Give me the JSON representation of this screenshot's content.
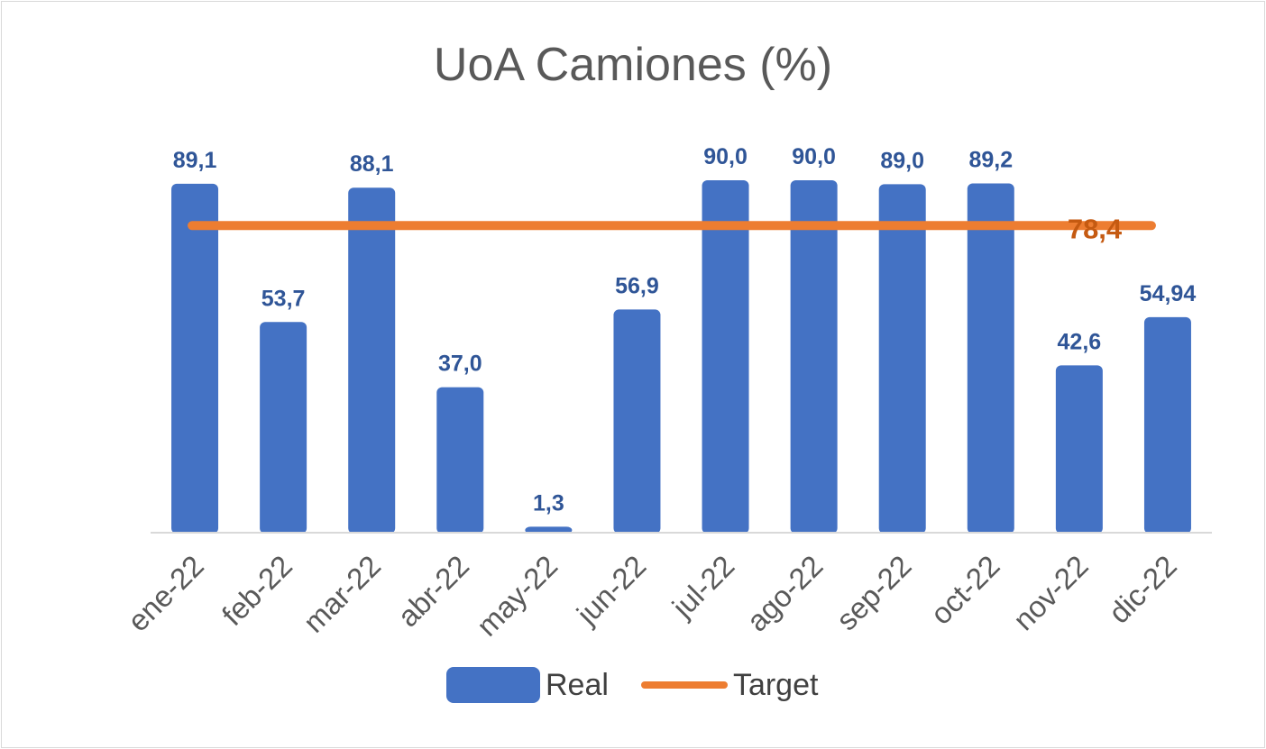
{
  "chart_data": {
    "type": "bar",
    "title": "UoA Camiones (%)",
    "categories": [
      "ene-22",
      "feb-22",
      "mar-22",
      "abr-22",
      "may-22",
      "jun-22",
      "jul-22",
      "ago-22",
      "sep-22",
      "oct-22",
      "nov-22",
      "dic-22"
    ],
    "series": [
      {
        "name": "Real",
        "type": "bar",
        "color": "#4472c4",
        "values": [
          89.1,
          53.7,
          88.1,
          37.0,
          1.3,
          56.9,
          90.0,
          90.0,
          89.0,
          89.2,
          42.6,
          54.94
        ],
        "labels": [
          "89,1",
          "53,7",
          "88,1",
          "37,0",
          "1,3",
          "56,9",
          "90,0",
          "90,0",
          "89,0",
          "89,2",
          "42,6",
          "54,94"
        ]
      },
      {
        "name": "Target",
        "type": "line",
        "color": "#ed7d31",
        "value": 78.4,
        "label": "78,4"
      }
    ],
    "ylim": [
      0,
      90
    ],
    "grid": false,
    "legend_position": "bottom"
  }
}
